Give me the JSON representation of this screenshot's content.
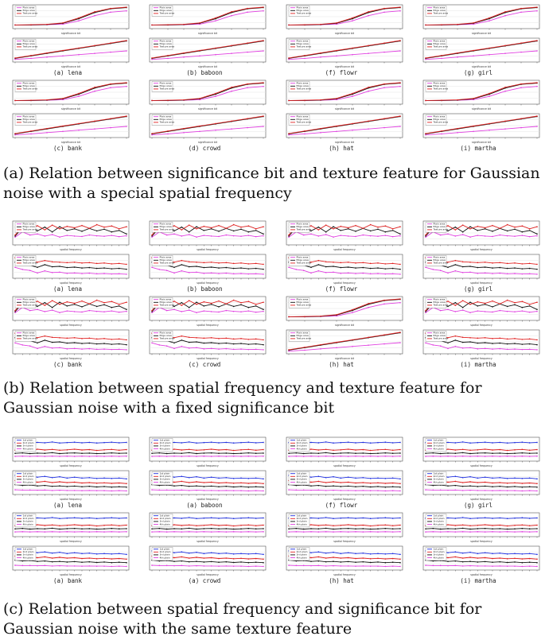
{
  "panels": [
    {
      "id": "a",
      "caption": "(a) Relation between significance bit and texture feature for Gaussian noise with a special spatial frequency",
      "legend": [
        "Plain area",
        "Edge area",
        "Texture area"
      ],
      "colors": [
        "#e040e0",
        "#111111",
        "#e02020"
      ],
      "labels": [
        "(a) lena",
        "(b) baboon",
        "(f) flowr",
        "(g) girl",
        "(c) bank",
        "(d) crowd",
        "(h) hat",
        "(i) martha"
      ]
    },
    {
      "id": "b",
      "caption": "(b) Relation between spatial frequency and texture feature for Gaussian noise with a fixed significance bit",
      "legend": [
        "Plain area",
        "Edge area",
        "Texture area"
      ],
      "colors": [
        "#e040e0",
        "#111111",
        "#e02020"
      ],
      "labels": [
        "(a) lena",
        "(b) baboon",
        "(f) flowr",
        "(g) girl",
        "(c) bank",
        "(c) crowd",
        "(h) hat",
        "(i) martha"
      ]
    },
    {
      "id": "c",
      "caption": "(c) Relation between spatial frequency and significance bit for Gaussian noise with the same texture feature",
      "legend": [
        "1st plain",
        "2nd plain",
        "3rd plain",
        "4th plain"
      ],
      "colors": [
        "#2030e0",
        "#e02020",
        "#111111",
        "#e040e0"
      ],
      "labels": [
        "(a) lena",
        "(a) baboon",
        "(f) flowr",
        "(g) girl",
        "(a) bank",
        "(a) crowd",
        "(h) hat",
        "(i) martha"
      ]
    }
  ],
  "chart_data": [
    {
      "type": "line",
      "title": "",
      "xlabel": "significance bit",
      "ylabel": "",
      "x": [
        1,
        2,
        3,
        4,
        5,
        6,
        7,
        8
      ],
      "metrics": {
        "s_curve": {
          "series": [
            {
              "name": "Plain area",
              "values": [
                0.1,
                0.1,
                0.11,
                0.14,
                0.3,
                0.55,
                0.72,
                0.78
              ]
            },
            {
              "name": "Edge area",
              "values": [
                0.1,
                0.1,
                0.12,
                0.18,
                0.4,
                0.7,
                0.88,
                0.94
              ]
            },
            {
              "name": "Texture area",
              "values": [
                0.1,
                0.11,
                0.13,
                0.2,
                0.44,
                0.74,
                0.9,
                0.96
              ]
            }
          ],
          "ylim": [
            0,
            1
          ]
        },
        "linear": {
          "series": [
            {
              "name": "Plain area",
              "values": [
                0.05,
                0.1,
                0.16,
                0.22,
                0.28,
                0.34,
                0.4,
                0.46
              ]
            },
            {
              "name": "Edge area",
              "values": [
                0.1,
                0.22,
                0.34,
                0.46,
                0.58,
                0.7,
                0.82,
                0.94
              ]
            },
            {
              "name": "Texture area",
              "values": [
                0.12,
                0.24,
                0.36,
                0.48,
                0.6,
                0.72,
                0.84,
                0.96
              ]
            }
          ],
          "ylim": [
            0,
            1
          ]
        }
      },
      "grid": true,
      "legend": "top-left"
    },
    {
      "type": "line",
      "title": "",
      "xlabel": "spatial frequency",
      "ylabel": "",
      "x": [
        1,
        2,
        3,
        4,
        5,
        6,
        7,
        8,
        9,
        10,
        11,
        12,
        13,
        14,
        15,
        16
      ],
      "metrics": {
        "zigzag": {
          "series": [
            {
              "name": "Plain area",
              "values": [
                0.3,
                0.55,
                0.4,
                0.45,
                0.35,
                0.42,
                0.3,
                0.38,
                0.35,
                0.33,
                0.4,
                0.36,
                0.34,
                0.38,
                0.32,
                0.36
              ]
            },
            {
              "name": "Edge area",
              "values": [
                0.35,
                0.75,
                0.7,
                0.6,
                0.78,
                0.55,
                0.8,
                0.62,
                0.7,
                0.58,
                0.72,
                0.6,
                0.68,
                0.55,
                0.62,
                0.45
              ]
            },
            {
              "name": "Texture area",
              "values": [
                0.4,
                0.8,
                0.72,
                0.85,
                0.65,
                0.88,
                0.7,
                0.82,
                0.75,
                0.86,
                0.72,
                0.9,
                0.78,
                0.84,
                0.7,
                0.8
              ]
            }
          ],
          "ylim": [
            0,
            1
          ]
        },
        "decay": {
          "series": [
            {
              "name": "Plain area",
              "values": [
                0.45,
                0.35,
                0.3,
                0.18,
                0.28,
                0.2,
                0.22,
                0.16,
                0.18,
                0.15,
                0.17,
                0.14,
                0.15,
                0.13,
                0.14,
                0.12
              ]
            },
            {
              "name": "Edge area",
              "values": [
                0.7,
                0.62,
                0.55,
                0.45,
                0.58,
                0.48,
                0.5,
                0.44,
                0.46,
                0.42,
                0.44,
                0.4,
                0.42,
                0.38,
                0.4,
                0.36
              ]
            },
            {
              "name": "Texture area",
              "values": [
                0.92,
                0.82,
                0.76,
                0.7,
                0.78,
                0.72,
                0.7,
                0.68,
                0.7,
                0.66,
                0.68,
                0.64,
                0.66,
                0.62,
                0.64,
                0.6
              ]
            }
          ],
          "ylim": [
            0,
            1
          ]
        }
      },
      "grid": true,
      "legend": "top-left"
    },
    {
      "type": "line",
      "title": "",
      "xlabel": "spatial frequency",
      "ylabel": "",
      "x": [
        1,
        2,
        3,
        4,
        5,
        6,
        7,
        8,
        9,
        10,
        11,
        12,
        13,
        14,
        15,
        16
      ],
      "metrics": {
        "flat": {
          "series": [
            {
              "name": "1st plain",
              "values": [
                0.82,
                0.84,
                0.8,
                0.83,
                0.81,
                0.85,
                0.8,
                0.82,
                0.84,
                0.81,
                0.83,
                0.8,
                0.82,
                0.84,
                0.81,
                0.83
              ]
            },
            {
              "name": "2nd plain",
              "values": [
                0.45,
                0.48,
                0.44,
                0.5,
                0.46,
                0.49,
                0.45,
                0.47,
                0.5,
                0.46,
                0.48,
                0.44,
                0.47,
                0.49,
                0.45,
                0.48
              ]
            },
            {
              "name": "3rd plain",
              "values": [
                0.3,
                0.32,
                0.29,
                0.31,
                0.3,
                0.33,
                0.29,
                0.31,
                0.32,
                0.3,
                0.31,
                0.29,
                0.3,
                0.32,
                0.3,
                0.31
              ]
            },
            {
              "name": "4th plain",
              "values": [
                0.15,
                0.16,
                0.15,
                0.16,
                0.15,
                0.16,
                0.15,
                0.16,
                0.15,
                0.16,
                0.15,
                0.16,
                0.15,
                0.16,
                0.15,
                0.16
              ]
            }
          ],
          "ylim": [
            0,
            1
          ]
        },
        "decline": {
          "series": [
            {
              "name": "1st plain",
              "values": [
                0.85,
                0.8,
                0.82,
                0.76,
                0.8,
                0.74,
                0.78,
                0.72,
                0.76,
                0.72,
                0.74,
                0.7,
                0.72,
                0.7,
                0.72,
                0.68
              ]
            },
            {
              "name": "2nd plain",
              "values": [
                0.6,
                0.55,
                0.58,
                0.52,
                0.56,
                0.5,
                0.54,
                0.5,
                0.52,
                0.48,
                0.5,
                0.47,
                0.49,
                0.46,
                0.48,
                0.45
              ]
            },
            {
              "name": "3rd plain",
              "values": [
                0.4,
                0.36,
                0.38,
                0.34,
                0.36,
                0.32,
                0.34,
                0.31,
                0.33,
                0.3,
                0.32,
                0.29,
                0.31,
                0.28,
                0.3,
                0.28
              ]
            },
            {
              "name": "4th plain",
              "values": [
                0.15,
                0.14,
                0.14,
                0.13,
                0.14,
                0.12,
                0.13,
                0.12,
                0.12,
                0.11,
                0.12,
                0.11,
                0.11,
                0.1,
                0.11,
                0.1
              ]
            }
          ],
          "ylim": [
            0,
            1
          ]
        }
      },
      "grid": true,
      "legend": "top-left"
    }
  ]
}
